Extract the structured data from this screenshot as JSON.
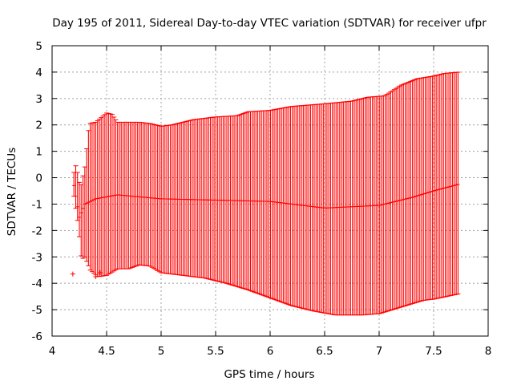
{
  "chart_data": {
    "type": "errorbar",
    "title": "Day 195 of 2011, Sidereal Day-to-day VTEC variation (SDTVAR) for receiver ufpr",
    "xlabel": "GPS time / hours",
    "ylabel": "SDTVAR / TECUs",
    "xlim": [
      4,
      8
    ],
    "ylim": [
      -6,
      5
    ],
    "xticks": [
      4,
      4.5,
      5,
      5.5,
      6,
      6.5,
      7,
      7.5,
      8
    ],
    "xtick_labels": [
      "4",
      "4.5",
      "5",
      "5.5",
      "6",
      "6.5",
      "7",
      "7.5",
      "8"
    ],
    "yticks": [
      -6,
      -5,
      -4,
      -3,
      -2,
      -1,
      0,
      1,
      2,
      3,
      4,
      5
    ],
    "ytick_labels": [
      "-6",
      "-5",
      "-4",
      "-3",
      "-2",
      "-1",
      "0",
      "1",
      "2",
      "3",
      "4",
      "5"
    ],
    "grid": true,
    "color": "#ff0000",
    "x_start": 4.2,
    "x_end": 7.73,
    "x_step": 0.0167,
    "mean_profile": [
      [
        4.2,
        -0.3
      ],
      [
        4.25,
        -1.5
      ],
      [
        4.3,
        -1.0
      ],
      [
        4.4,
        -0.8
      ],
      [
        4.6,
        -0.65
      ],
      [
        5.0,
        -0.8
      ],
      [
        5.5,
        -0.85
      ],
      [
        6.0,
        -0.9
      ],
      [
        6.5,
        -1.15
      ],
      [
        7.0,
        -1.05
      ],
      [
        7.3,
        -0.75
      ],
      [
        7.5,
        -0.5
      ],
      [
        7.73,
        -0.25
      ]
    ],
    "upper_profile": [
      [
        4.2,
        0.2
      ],
      [
        4.22,
        0.5
      ],
      [
        4.26,
        -0.4
      ],
      [
        4.3,
        0.4
      ],
      [
        4.34,
        2.05
      ],
      [
        4.4,
        2.1
      ],
      [
        4.5,
        2.45
      ],
      [
        4.55,
        2.4
      ],
      [
        4.6,
        2.1
      ],
      [
        4.8,
        2.1
      ],
      [
        4.9,
        2.05
      ],
      [
        5.0,
        1.95
      ],
      [
        5.1,
        2.0
      ],
      [
        5.3,
        2.2
      ],
      [
        5.5,
        2.3
      ],
      [
        5.7,
        2.35
      ],
      [
        5.8,
        2.5
      ],
      [
        6.0,
        2.55
      ],
      [
        6.2,
        2.7
      ],
      [
        6.5,
        2.8
      ],
      [
        6.75,
        2.9
      ],
      [
        6.9,
        3.05
      ],
      [
        7.05,
        3.1
      ],
      [
        7.2,
        3.5
      ],
      [
        7.35,
        3.75
      ],
      [
        7.5,
        3.85
      ],
      [
        7.6,
        3.95
      ],
      [
        7.73,
        4.0
      ]
    ],
    "lower_profile": [
      [
        4.2,
        -0.7
      ],
      [
        4.24,
        -1.8
      ],
      [
        4.27,
        -3.1
      ],
      [
        4.3,
        -3.0
      ],
      [
        4.35,
        -3.5
      ],
      [
        4.42,
        -3.75
      ],
      [
        4.5,
        -3.7
      ],
      [
        4.6,
        -3.45
      ],
      [
        4.7,
        -3.45
      ],
      [
        4.8,
        -3.3
      ],
      [
        4.9,
        -3.35
      ],
      [
        5.0,
        -3.6
      ],
      [
        5.2,
        -3.7
      ],
      [
        5.4,
        -3.8
      ],
      [
        5.6,
        -4.0
      ],
      [
        5.8,
        -4.25
      ],
      [
        6.0,
        -4.55
      ],
      [
        6.2,
        -4.85
      ],
      [
        6.4,
        -5.05
      ],
      [
        6.6,
        -5.2
      ],
      [
        6.85,
        -5.2
      ],
      [
        7.0,
        -5.15
      ],
      [
        7.2,
        -4.9
      ],
      [
        7.4,
        -4.65
      ],
      [
        7.5,
        -4.6
      ],
      [
        7.73,
        -4.4
      ]
    ],
    "outlier_points": [
      [
        4.19,
        -3.65
      ],
      [
        4.4,
        -3.75
      ],
      [
        4.44,
        -3.6
      ]
    ]
  }
}
